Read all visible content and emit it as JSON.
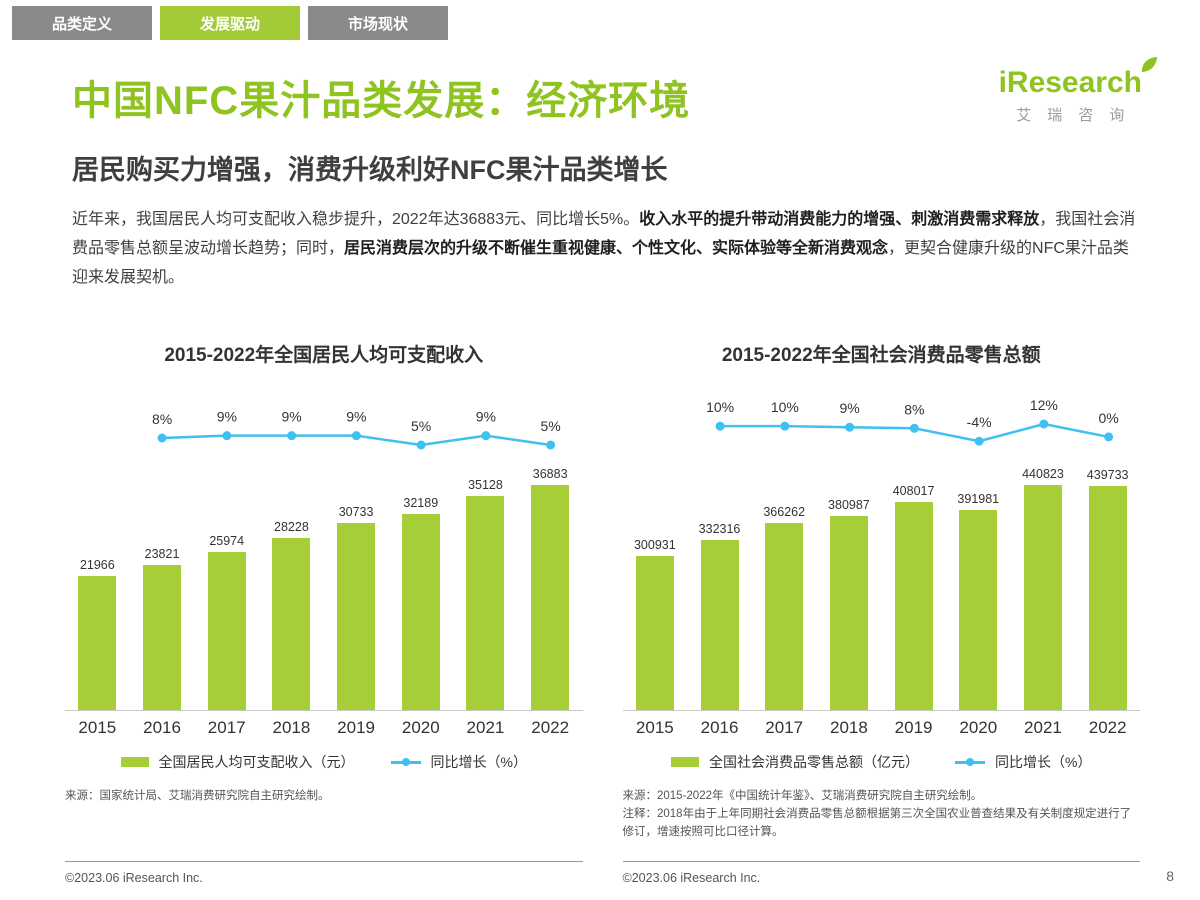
{
  "tabs": [
    {
      "label": "品类定义",
      "active": false
    },
    {
      "label": "发展驱动",
      "active": true
    },
    {
      "label": "市场现状",
      "active": false
    }
  ],
  "header": {
    "title": "中国NFC果汁品类发展：经济环境",
    "subtitle": "居民购买力增强，消费升级利好NFC果汁品类增长",
    "logo_word": "iResearch",
    "logo_cn": "艾瑞咨询"
  },
  "paragraph": {
    "segments": [
      {
        "text": "近年来，我国居民人均可支配收入稳步提升，2022年达36883元、同比增长5%。",
        "bold": false
      },
      {
        "text": "收入水平的提升带动消费能力的增强、刺激消费需求释放",
        "bold": true
      },
      {
        "text": "，我国社会消费品零售总额呈波动增长趋势；同时，",
        "bold": false
      },
      {
        "text": "居民消费层次的升级不断催生重视健康、个性文化、实际体验等全新消费观念",
        "bold": true
      },
      {
        "text": "，更契合健康升级的NFC果汁品类迎来发展契机。",
        "bold": false
      }
    ]
  },
  "colors": {
    "accent_green": "#8fc31f",
    "bar_green": "#a5ce39",
    "line_blue": "#3ec1f0",
    "tab_gray": "#8a8a8a"
  },
  "chart_data": [
    {
      "type": "bar",
      "title": "2015-2022年全国居民人均可支配收入",
      "categories": [
        "2015",
        "2016",
        "2017",
        "2018",
        "2019",
        "2020",
        "2021",
        "2022"
      ],
      "series": [
        {
          "name": "全国居民人均可支配收入（元）",
          "kind": "bar",
          "values": [
            21966,
            23821,
            25974,
            28228,
            30733,
            32189,
            35128,
            36883
          ]
        },
        {
          "name": "同比增长（%）",
          "kind": "line",
          "x_start_index": 1,
          "values": [
            8,
            9,
            9,
            9,
            5,
            9,
            5
          ],
          "labels": [
            "8%",
            "9%",
            "9%",
            "9%",
            "5%",
            "9%",
            "5%"
          ],
          "ylim": [
            -10,
            20
          ]
        }
      ],
      "legend": [
        "全国居民人均可支配收入（元）",
        "同比增长（%）"
      ],
      "grid": "off",
      "legend_position": "bottom",
      "source": "来源：国家统计局、艾瑞消费研究院自主研究绘制。",
      "note": ""
    },
    {
      "type": "bar",
      "title": "2015-2022年全国社会消费品零售总额",
      "categories": [
        "2015",
        "2016",
        "2017",
        "2018",
        "2019",
        "2020",
        "2021",
        "2022"
      ],
      "series": [
        {
          "name": "全国社会消费品零售总额（亿元）",
          "kind": "bar",
          "values": [
            300931,
            332316,
            366262,
            380987,
            408017,
            391981,
            440823,
            439733
          ]
        },
        {
          "name": "同比增长（%）",
          "kind": "line",
          "x_start_index": 1,
          "values": [
            10,
            10,
            9,
            8,
            -4,
            12,
            0
          ],
          "labels": [
            "10%",
            "10%",
            "9%",
            "8%",
            "-4%",
            "12%",
            "0%"
          ],
          "ylim": [
            -40,
            25
          ]
        }
      ],
      "legend": [
        "全国社会消费品零售总额（亿元）",
        "同比增长（%）"
      ],
      "grid": "off",
      "legend_position": "bottom",
      "source": "来源：2015-2022年《中国统计年鉴》、艾瑞消费研究院自主研究绘制。",
      "note": "注释：2018年由于上年同期社会消费品零售总额根据第三次全国农业普查结果及有关制度规定进行了修订，增速按照可比口径计算。"
    }
  ],
  "footer": {
    "copyright_left": "©2023.06 iResearch Inc.",
    "copyright_right": "©2023.06 iResearch Inc.",
    "page_number": "8"
  }
}
